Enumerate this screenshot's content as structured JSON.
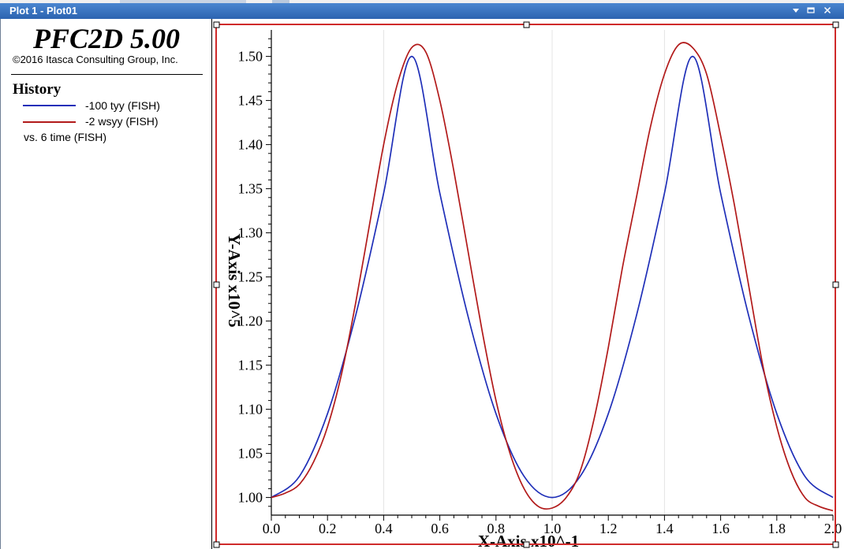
{
  "window": {
    "title": "Plot 1 - Plot01",
    "buttons": [
      "menu",
      "restore",
      "close"
    ]
  },
  "legend": {
    "product": "PFC2D 5.00",
    "copyright": "©2016 Itasca Consulting Group, Inc.",
    "heading": "History",
    "series": [
      {
        "label": "-100 tyy (FISH)",
        "color": "#1f2fb8"
      },
      {
        "label": "-2 wsyy (FISH)",
        "color": "#b21a1a"
      }
    ],
    "vs": "vs. 6 time (FISH)"
  },
  "chart_data": {
    "type": "line",
    "xlabel": "X-Axis x10^-1",
    "ylabel": "Y-Axis x10^5",
    "xlim": [
      0,
      2.0
    ],
    "ylim": [
      0.98,
      1.53
    ],
    "xticks": [
      0.0,
      0.2,
      0.4,
      0.6,
      0.8,
      1.0,
      1.2,
      1.4,
      1.6,
      1.8,
      2.0
    ],
    "xtick_labels": [
      "0.0",
      "0.2",
      "0.4",
      "0.6",
      "0.8",
      "1.0",
      "1.2",
      "1.4",
      "1.6",
      "1.8",
      "2.0"
    ],
    "yticks": [
      1.0,
      1.05,
      1.1,
      1.15,
      1.2,
      1.25,
      1.3,
      1.35,
      1.4,
      1.45,
      1.5
    ],
    "ytick_labels": [
      "1.00",
      "1.05",
      "1.10",
      "1.15",
      "1.20",
      "1.25",
      "1.30",
      "1.35",
      "1.40",
      "1.45",
      "1.50"
    ],
    "grid_x": [
      0.4,
      1.0,
      1.4
    ],
    "series": [
      {
        "name": "-100 tyy (FISH)",
        "color": "#1f2fb8",
        "x": [
          0.0,
          0.1,
          0.2,
          0.3,
          0.4,
          0.5,
          0.6,
          0.7,
          0.8,
          0.9,
          1.0,
          1.1,
          1.2,
          1.3,
          1.4,
          1.5,
          1.6,
          1.7,
          1.8,
          1.9,
          2.0
        ],
        "y": [
          1.0,
          1.024,
          1.095,
          1.206,
          1.345,
          1.5,
          1.345,
          1.206,
          1.095,
          1.024,
          1.0,
          1.024,
          1.095,
          1.206,
          1.345,
          1.5,
          1.345,
          1.206,
          1.095,
          1.024,
          1.0
        ]
      },
      {
        "name": "-2 wsyy (FISH)",
        "color": "#b21a1a",
        "x": [
          0.0,
          0.05,
          0.1,
          0.15,
          0.2,
          0.25,
          0.3,
          0.35,
          0.4,
          0.45,
          0.5,
          0.55,
          0.6,
          0.65,
          0.7,
          0.75,
          0.8,
          0.85,
          0.9,
          0.95,
          1.0,
          1.05,
          1.1,
          1.15,
          1.2,
          1.25,
          1.3,
          1.35,
          1.4,
          1.45,
          1.5,
          1.55,
          1.6,
          1.65,
          1.7,
          1.75,
          1.8,
          1.85,
          1.9,
          1.95,
          2.0
        ],
        "y": [
          1.0,
          1.005,
          1.015,
          1.04,
          1.08,
          1.14,
          1.22,
          1.31,
          1.4,
          1.47,
          1.51,
          1.505,
          1.45,
          1.37,
          1.28,
          1.19,
          1.11,
          1.05,
          1.01,
          0.99,
          0.988,
          1.0,
          1.03,
          1.09,
          1.17,
          1.26,
          1.34,
          1.42,
          1.48,
          1.513,
          1.51,
          1.48,
          1.41,
          1.33,
          1.24,
          1.15,
          1.08,
          1.03,
          1.0,
          0.99,
          0.985
        ]
      }
    ]
  }
}
